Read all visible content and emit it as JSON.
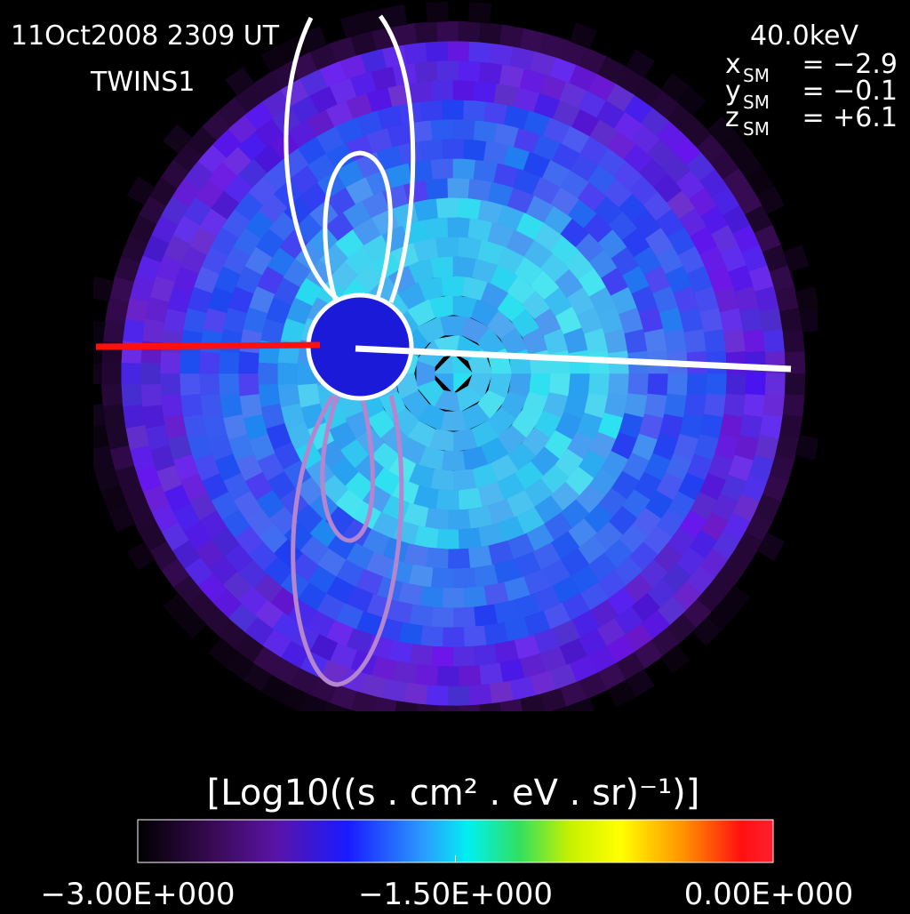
{
  "header": {
    "timestamp": "11Oct2008 2309 UT",
    "spacecraft": "TWINS1"
  },
  "energy": "40.0keV",
  "position": [
    {
      "axis": "x",
      "sub": "SM",
      "value": "= −2.9"
    },
    {
      "axis": "y",
      "sub": "SM",
      "value": "= −0.1"
    },
    {
      "axis": "z",
      "sub": "SM",
      "value": "= +6.1"
    }
  ],
  "colorbar": {
    "label": "[Log10((s . cm² . eV . sr)⁻¹)]",
    "range": [
      -3,
      0
    ],
    "ticks": [
      {
        "value": -3,
        "label": "−3.00E+000"
      },
      {
        "value": -1.5,
        "label": "−1.50E+000"
      },
      {
        "value": 0,
        "label": "0.00E+000"
      }
    ]
  }
}
